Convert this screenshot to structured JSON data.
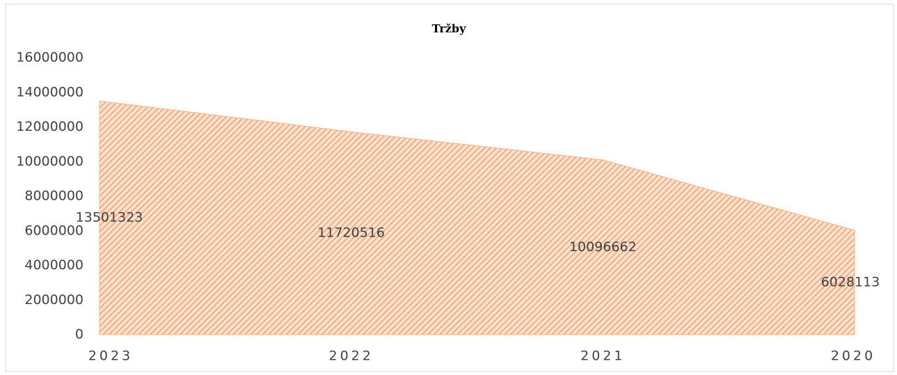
{
  "chart_data": {
    "type": "area",
    "title": "Tržby",
    "categories": [
      "2023",
      "2022",
      "2021",
      "2020"
    ],
    "values": [
      13501323,
      11720516,
      10096662,
      6028113
    ],
    "color": "#f4b183",
    "ylim": [
      0,
      16000000
    ],
    "yticks": [
      0,
      2000000,
      4000000,
      6000000,
      8000000,
      10000000,
      12000000,
      14000000,
      16000000
    ],
    "data_labels": true
  }
}
